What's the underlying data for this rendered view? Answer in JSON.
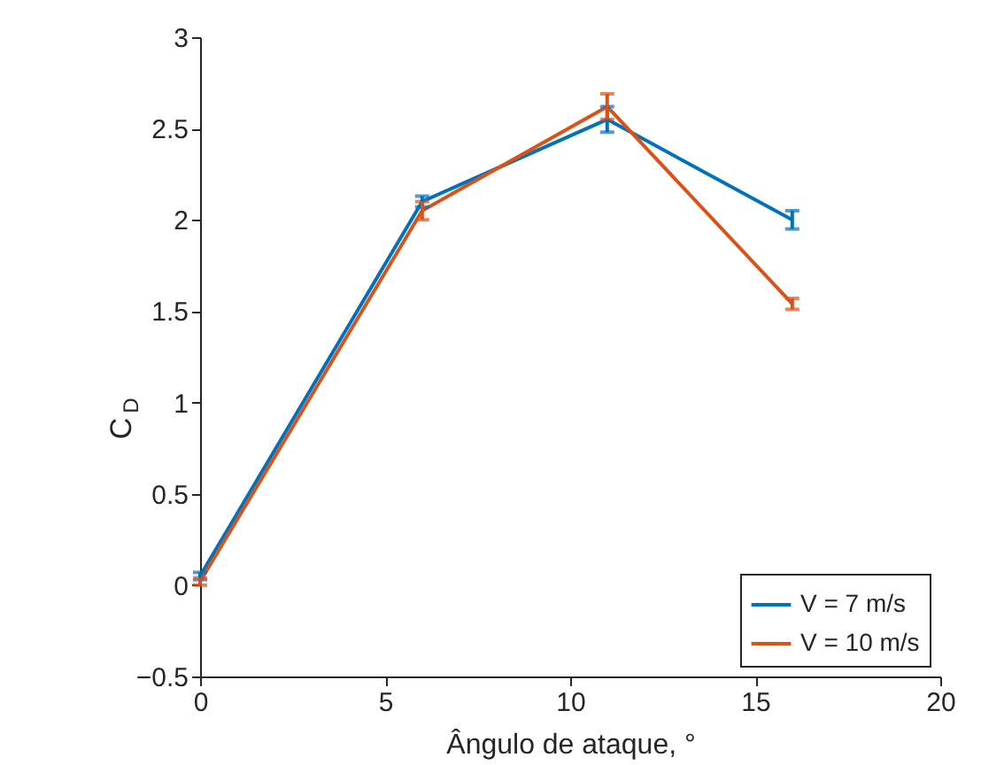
{
  "chart_data": {
    "type": "line",
    "xlabel": "Ângulo de ataque, °",
    "ylabel": "C$_{D}$",
    "x": [
      0,
      6,
      11,
      16
    ],
    "series": [
      {
        "name": "V = 7 m/s",
        "color": "#0072bd",
        "values": [
          0.05,
          2.1,
          2.55,
          2.0
        ],
        "errors": [
          0.02,
          0.03,
          0.07,
          0.05
        ]
      },
      {
        "name": "V = 10 m/s",
        "color": "#d95319",
        "values": [
          0.02,
          2.05,
          2.62,
          1.54
        ],
        "errors": [
          0.02,
          0.05,
          0.07,
          0.03
        ]
      }
    ],
    "xlim": [
      0,
      20
    ],
    "xticks": [
      0,
      5,
      10,
      15,
      20
    ],
    "ylim": [
      -0.5,
      3
    ],
    "yticks": [
      -0.5,
      0,
      0.5,
      1,
      1.5,
      2,
      2.5,
      3
    ],
    "legend": "bottom right",
    "marker": "none",
    "line_style": "solid",
    "grid": false
  }
}
